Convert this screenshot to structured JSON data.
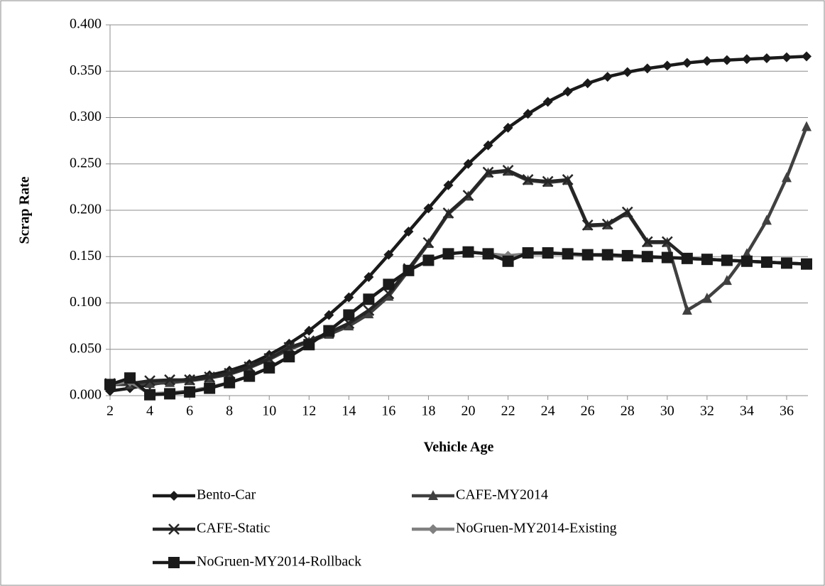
{
  "chart_data": {
    "type": "line",
    "y_label": "Scrap Rate",
    "x_label": "Vehicle Age",
    "x": [
      2,
      3,
      4,
      5,
      6,
      7,
      8,
      9,
      10,
      11,
      12,
      13,
      14,
      15,
      16,
      17,
      18,
      19,
      20,
      21,
      22,
      23,
      24,
      25,
      26,
      27,
      28,
      29,
      30,
      31,
      32,
      33,
      34,
      35,
      36,
      37
    ],
    "xlim": [
      2,
      37
    ],
    "xticks": [
      2,
      4,
      6,
      8,
      10,
      12,
      14,
      16,
      18,
      20,
      22,
      24,
      26,
      28,
      30,
      32,
      34,
      36
    ],
    "ylim": [
      0,
      0.4
    ],
    "yticks": [
      {
        "value": 0,
        "label": "0.000"
      },
      {
        "value": 0.05,
        "label": "0.050"
      },
      {
        "value": 0.1,
        "label": "0.100"
      },
      {
        "value": 0.15,
        "label": "0.150"
      },
      {
        "value": 0.2,
        "label": "0.200"
      },
      {
        "value": 0.25,
        "label": "0.250"
      },
      {
        "value": 0.3,
        "label": "0.300"
      },
      {
        "value": 0.35,
        "label": "0.350"
      },
      {
        "value": 0.4,
        "label": "0.400"
      }
    ],
    "grid": true,
    "legend": "bottom",
    "series": [
      {
        "name": "Bento-Car",
        "color": "#1a1a1a",
        "marker": "diamond",
        "values": [
          0.005,
          0.008,
          0.012,
          0.015,
          0.018,
          0.022,
          0.027,
          0.034,
          0.044,
          0.056,
          0.07,
          0.087,
          0.106,
          0.128,
          0.152,
          0.177,
          0.202,
          0.227,
          0.25,
          0.27,
          0.289,
          0.304,
          0.317,
          0.328,
          0.337,
          0.344,
          0.349,
          0.353,
          0.356,
          0.359,
          0.361,
          0.362,
          0.363,
          0.364,
          0.365,
          0.366
        ]
      },
      {
        "name": "CAFE-MY2014",
        "color": "#404040",
        "marker": "triangle",
        "values": [
          0.012,
          0.012,
          0.013,
          0.014,
          0.016,
          0.019,
          0.023,
          0.03,
          0.039,
          0.05,
          0.058,
          0.066,
          0.075,
          0.088,
          0.107,
          0.135,
          0.164,
          0.196,
          0.215,
          0.24,
          0.242,
          0.232,
          0.23,
          0.232,
          0.183,
          0.184,
          0.197,
          0.165,
          0.165,
          0.092,
          0.105,
          0.124,
          0.153,
          0.189,
          0.235,
          0.29
        ]
      },
      {
        "name": "CAFE-Static",
        "color": "#262626",
        "marker": "x",
        "values": [
          0.013,
          0.013,
          0.016,
          0.017,
          0.017,
          0.02,
          0.024,
          0.031,
          0.04,
          0.052,
          0.059,
          0.068,
          0.078,
          0.092,
          0.11,
          0.137,
          0.165,
          0.197,
          0.216,
          0.241,
          0.243,
          0.233,
          0.231,
          0.233,
          0.184,
          0.185,
          0.198,
          0.166,
          0.166,
          0.148,
          0.147,
          0.146,
          0.145,
          0.144,
          0.143,
          0.142
        ]
      },
      {
        "name": "NoGruen-MY2014-Existing",
        "color": "#808080",
        "marker": "diamond",
        "values": [
          0.012,
          0.015,
          0.002,
          0.003,
          0.005,
          0.009,
          0.014,
          0.021,
          0.03,
          0.042,
          0.055,
          0.07,
          0.087,
          0.104,
          0.12,
          0.135,
          0.146,
          0.153,
          0.155,
          0.153,
          0.151,
          0.153,
          0.153,
          0.153,
          0.152,
          0.151,
          0.15,
          0.149,
          0.149,
          0.148,
          0.147,
          0.146,
          0.145,
          0.144,
          0.143,
          0.142
        ]
      },
      {
        "name": "NoGruen-MY2014-Rollback",
        "color": "#1a1a1a",
        "marker": "square",
        "values": [
          0.012,
          0.019,
          0.001,
          0.002,
          0.004,
          0.008,
          0.014,
          0.021,
          0.03,
          0.042,
          0.055,
          0.07,
          0.087,
          0.104,
          0.12,
          0.135,
          0.146,
          0.153,
          0.155,
          0.153,
          0.145,
          0.154,
          0.154,
          0.153,
          0.152,
          0.152,
          0.151,
          0.15,
          0.149,
          0.148,
          0.147,
          0.146,
          0.145,
          0.144,
          0.143,
          0.142
        ]
      }
    ]
  }
}
